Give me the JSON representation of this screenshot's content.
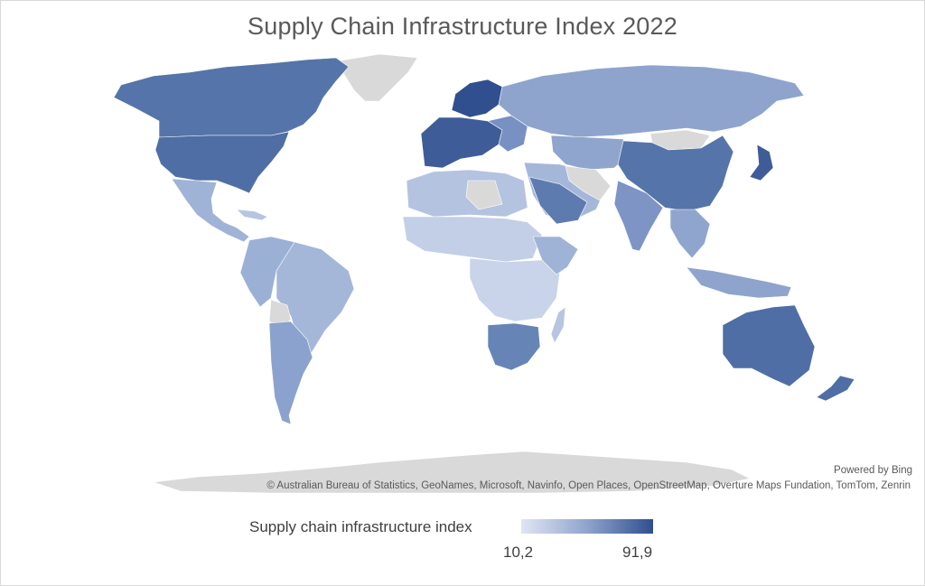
{
  "map": {
    "title": "Supply Chain Infrastructure Index 2022",
    "credits": {
      "powered_by": "Powered by Bing",
      "attribution": "© Australian Bureau of Statistics, GeoNames, Microsoft, Navinfo, Open Places, OpenStreetMap, Overture Maps Fundation, TomTom, Zenrin"
    },
    "legend": {
      "title": "Supply chain infrastructure index",
      "min": "10,2",
      "max": "91,9"
    },
    "colors": {
      "scale_low": "#dfe6f4",
      "scale_high": "#2f4f8f",
      "no_data": "#d9d9d9"
    }
  }
}
